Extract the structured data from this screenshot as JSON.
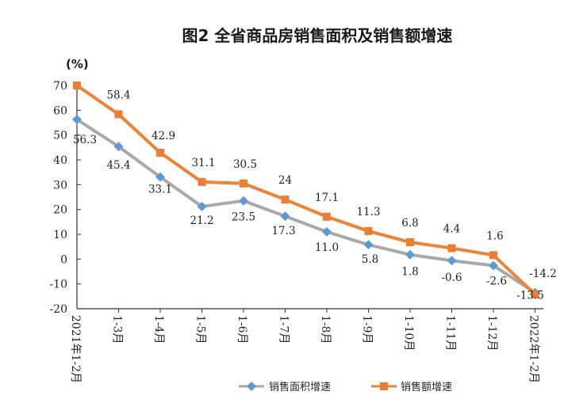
{
  "chart_data": {
    "type": "line",
    "title": "图2 全省商品房销售面积及销售额增速",
    "ylabel": "(%)",
    "xlabel": "",
    "ylim": [
      -20,
      70
    ],
    "yticks": [
      70,
      60,
      50,
      40,
      30,
      20,
      10,
      0,
      -10,
      -20
    ],
    "grid": false,
    "legend_position": "bottom",
    "categories": [
      "2021年1-2月",
      "1-3月",
      "1-4月",
      "1-5月",
      "1-6月",
      "1-7月",
      "1-8月",
      "1-9月",
      "1-10月",
      "1-11月",
      "1-12月",
      "2022年1-2月"
    ],
    "series": [
      {
        "name": "销售面积增速",
        "color": "#a9a9a9",
        "marker": "diamond",
        "marker_color": "#5b9bd5",
        "values": [
          56.3,
          45.4,
          33.1,
          21.2,
          23.5,
          17.3,
          11.0,
          5.8,
          1.8,
          -0.6,
          -2.6,
          -13.5
        ],
        "labels": [
          "56.3",
          "45.4",
          "33.1",
          "21.2",
          "23.5",
          "17.3",
          "11.0",
          "5.8",
          "1.8",
          "-0.6",
          "-2.6",
          "-13.5"
        ]
      },
      {
        "name": "销售额增速",
        "color": "#f08232",
        "marker": "square",
        "marker_color": "#ed7d31",
        "values": [
          null,
          58.4,
          42.9,
          31.1,
          30.5,
          24,
          17.1,
          11.3,
          6.8,
          4.4,
          1.6,
          -14.2
        ],
        "plot_values": [
          70,
          58.4,
          42.9,
          31.1,
          30.5,
          24,
          17.1,
          11.3,
          6.8,
          4.4,
          1.6,
          -14.2
        ],
        "labels": [
          null,
          "58.4",
          "42.9",
          "31.1",
          "30.5",
          "24",
          "17.1",
          "11.3",
          "6.8",
          "4.4",
          "1.6",
          "-14.2"
        ]
      }
    ]
  }
}
